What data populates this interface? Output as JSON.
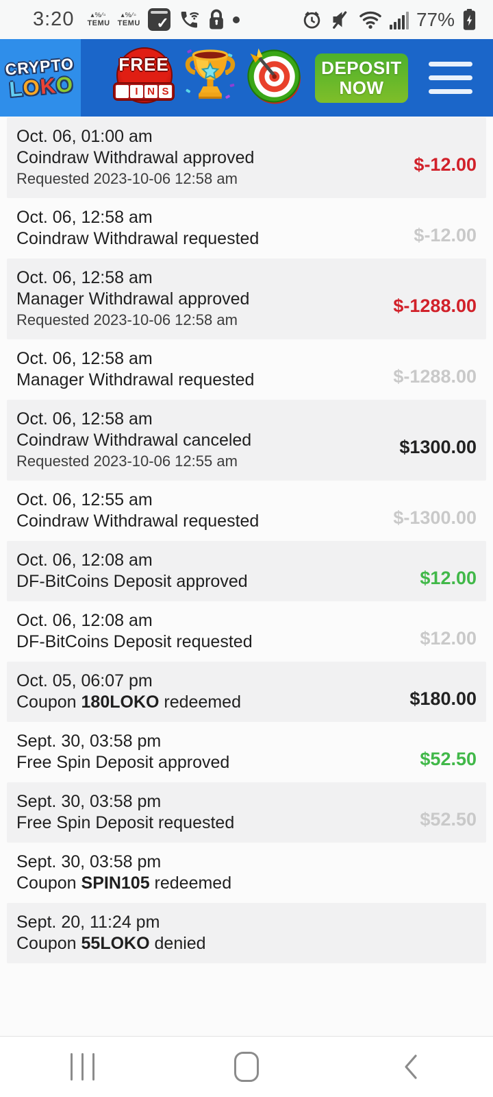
{
  "status_bar": {
    "time": "3:20",
    "battery": "77%",
    "temu_label": "TEMU",
    "temu_glyphs": "▴%∕▫"
  },
  "header": {
    "logo": {
      "line1": "CRYPTO",
      "l": "L",
      "o1": "O",
      "k": "K",
      "o2": "O"
    },
    "free_spins": {
      "line1": "FREE",
      "reel_letters": [
        "I",
        "N",
        "S"
      ]
    },
    "deposit_button": {
      "line1": "DEPOSIT",
      "line2": "NOW"
    }
  },
  "colors": {
    "negative": "#d1212a",
    "pending": "#c9c9c9",
    "positive": "#41b849",
    "neutral": "#222222",
    "header_blue": "#1b66c9",
    "logo_blue": "#2f8eea",
    "button_green": "#5db52c"
  },
  "transactions": [
    {
      "date": "Oct. 06, 01:00 am",
      "desc": "Coindraw Withdrawal approved",
      "requested": "Requested 2023-10-06 12:58 am",
      "amount": "$-12.00",
      "amount_type": "negative"
    },
    {
      "date": "Oct. 06, 12:58 am",
      "desc": "Coindraw Withdrawal requested",
      "requested": "",
      "amount": "$-12.00",
      "amount_type": "pending"
    },
    {
      "date": "Oct. 06, 12:58 am",
      "desc": "Manager Withdrawal approved",
      "requested": "Requested 2023-10-06 12:58 am",
      "amount": "$-1288.00",
      "amount_type": "negative"
    },
    {
      "date": "Oct. 06, 12:58 am",
      "desc": "Manager Withdrawal requested",
      "requested": "",
      "amount": "$-1288.00",
      "amount_type": "pending"
    },
    {
      "date": "Oct. 06, 12:58 am",
      "desc": "Coindraw Withdrawal canceled",
      "requested": "Requested 2023-10-06 12:55 am",
      "amount": "$1300.00",
      "amount_type": "neutral"
    },
    {
      "date": "Oct. 06, 12:55 am",
      "desc": "Coindraw Withdrawal requested",
      "requested": "",
      "amount": "$-1300.00",
      "amount_type": "pending"
    },
    {
      "date": "Oct. 06, 12:08 am",
      "desc": "DF-BitCoins Deposit approved",
      "requested": "",
      "amount": "$12.00",
      "amount_type": "positive"
    },
    {
      "date": "Oct. 06, 12:08 am",
      "desc": "DF-BitCoins Deposit requested",
      "requested": "",
      "amount": "$12.00",
      "amount_type": "pending"
    },
    {
      "date": "Oct. 05, 06:07 pm",
      "desc_prefix": "Coupon ",
      "code": "180LOKO",
      "desc_suffix": " redeemed",
      "requested": "",
      "amount": "$180.00",
      "amount_type": "neutral"
    },
    {
      "date": "Sept. 30, 03:58 pm",
      "desc": "Free Spin Deposit approved",
      "requested": "",
      "amount": "$52.50",
      "amount_type": "positive"
    },
    {
      "date": "Sept. 30, 03:58 pm",
      "desc": "Free Spin Deposit requested",
      "requested": "",
      "amount": "$52.50",
      "amount_type": "pending"
    },
    {
      "date": "Sept. 30, 03:58 pm",
      "desc_prefix": "Coupon ",
      "code": "SPIN105",
      "desc_suffix": " redeemed",
      "requested": "",
      "amount": "",
      "amount_type": "none"
    },
    {
      "date": "Sept. 20, 11:24 pm",
      "desc_prefix": "Coupon ",
      "code": "55LOKO",
      "desc_suffix": " denied",
      "requested": "",
      "amount": "",
      "amount_type": "none"
    }
  ]
}
